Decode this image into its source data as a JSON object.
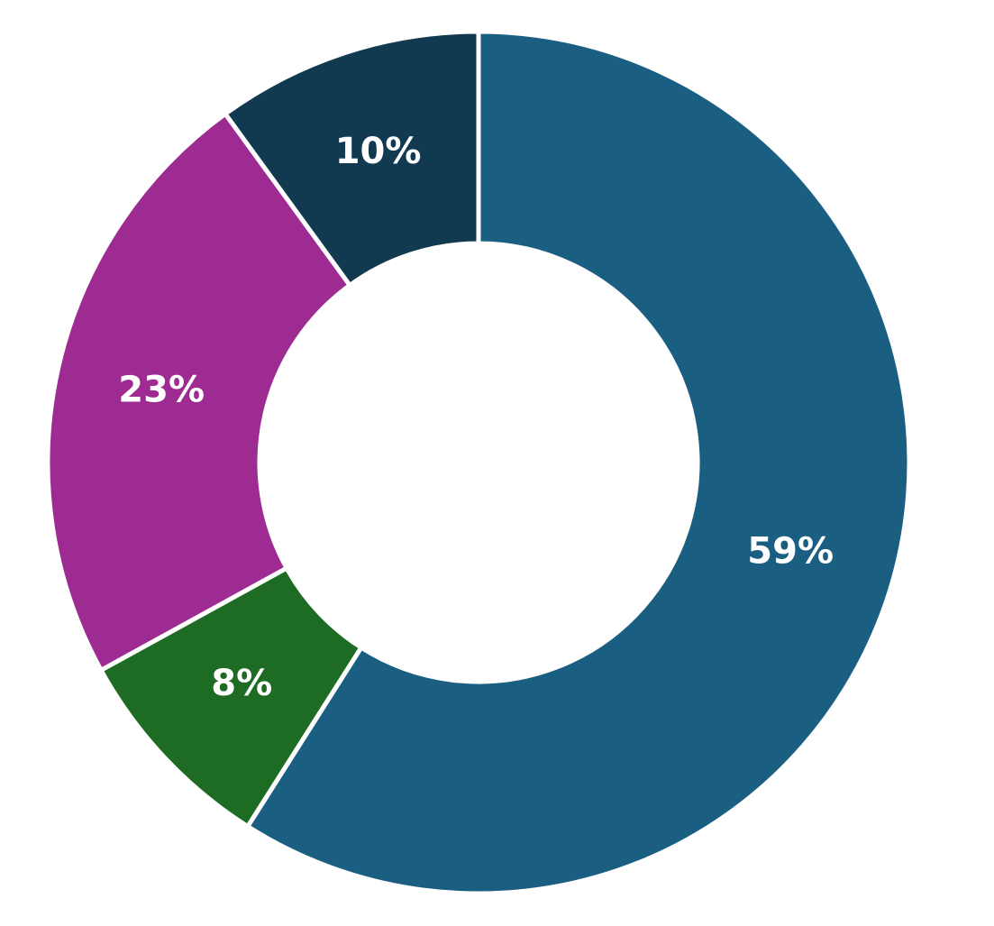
{
  "chart_data": {
    "type": "donut",
    "values": [
      59,
      8,
      23,
      10
    ],
    "value_labels": [
      "59%",
      "8%",
      "23%",
      "10%"
    ],
    "colors": [
      "#1a5f82",
      "#1e6b24",
      "#9e2b91",
      "#11394f"
    ]
  }
}
